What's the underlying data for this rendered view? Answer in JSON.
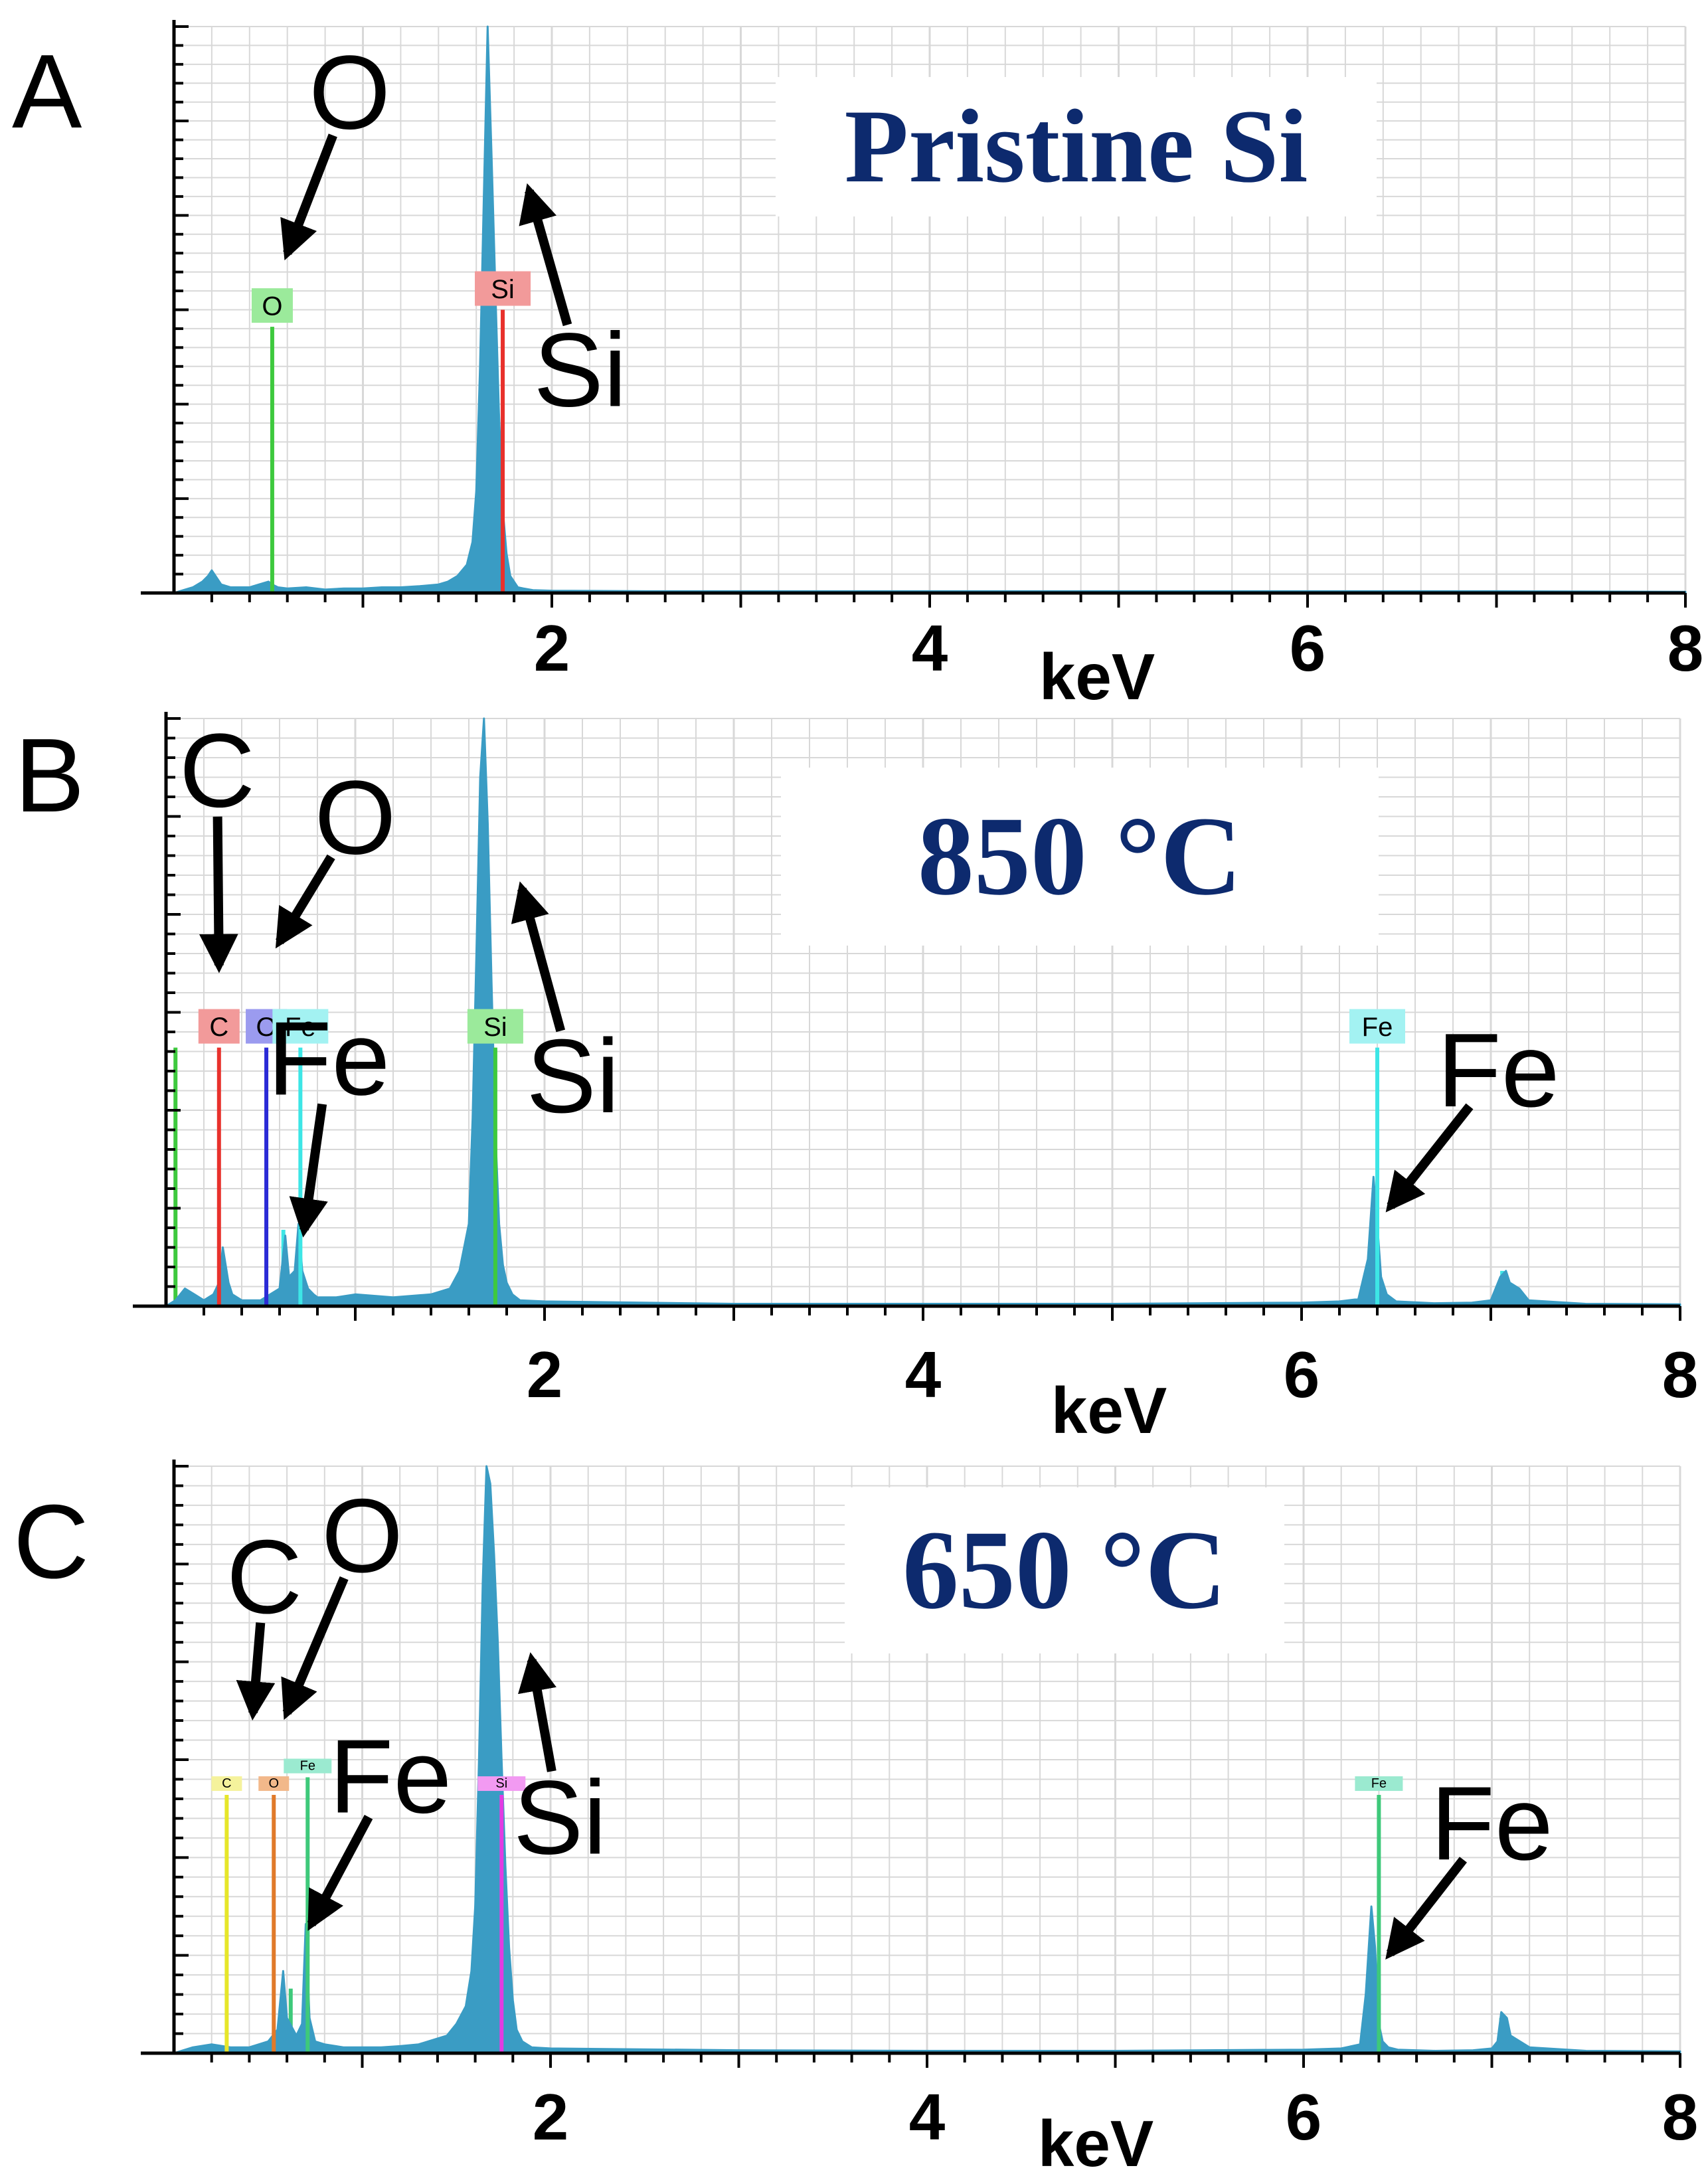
{
  "figure": {
    "panels": [
      "A",
      "B",
      "C"
    ]
  },
  "colors": {
    "spectrum": "#3a9cc4",
    "title_text": "#0d2a6e",
    "grid": "#d8d8d8",
    "axis": "#000000"
  },
  "chart_data": [
    {
      "type": "line",
      "panel": "A",
      "title": "Pristine Si",
      "xlabel": "keV",
      "ylabel": "",
      "xlim": [
        0,
        8
      ],
      "ylim": [
        0,
        100
      ],
      "xticks": [
        "2",
        "4",
        "6",
        "8"
      ],
      "series": [
        {
          "x": [
            0.0,
            0.05,
            0.1,
            0.15,
            0.18,
            0.2,
            0.25,
            0.3,
            0.35,
            0.4,
            0.45,
            0.5,
            0.52,
            0.55,
            0.6,
            0.7,
            0.8,
            0.9,
            1.0,
            1.1,
            1.2,
            1.3,
            1.4,
            1.45,
            1.5,
            1.55,
            1.58,
            1.6,
            1.62,
            1.64,
            1.66,
            1.68,
            1.7,
            1.72,
            1.74,
            1.76,
            1.78,
            1.8,
            1.82,
            1.85,
            1.9,
            2.0,
            2.5,
            3.0,
            4.0,
            5.0,
            6.0,
            7.0,
            8.0
          ],
          "y": [
            0,
            0.5,
            1,
            2,
            3,
            4,
            1.5,
            1,
            1,
            1,
            1.5,
            2,
            1.5,
            1,
            0.8,
            1,
            0.6,
            0.8,
            0.8,
            1,
            1,
            1.2,
            1.5,
            2,
            3,
            5,
            9,
            18,
            40,
            70,
            100,
            78,
            55,
            32,
            15,
            7,
            3,
            2,
            1,
            0.8,
            0.5,
            0.4,
            0.3,
            0.3,
            0.3,
            0.3,
            0.3,
            0.3,
            0.2
          ]
        }
      ],
      "element_markers": [
        {
          "label": "Si",
          "energy": 1.74,
          "height": 50,
          "color": "#e8312c",
          "tag_bg": "#f29a9a"
        },
        {
          "label": "O",
          "energy": 0.52,
          "height": 47,
          "color": "#3ec93e",
          "tag_bg": "#9bea9b"
        }
      ],
      "annotations": [
        {
          "text": "O",
          "x": 0.93,
          "y": 82,
          "arrow_to_x": 0.6,
          "arrow_to_y": 60
        },
        {
          "text": "Si",
          "x": 2.15,
          "y": 33,
          "arrow_to_x": 1.88,
          "arrow_to_y": 71
        }
      ]
    },
    {
      "type": "line",
      "panel": "B",
      "title": "850 °C",
      "xlabel": "keV",
      "ylabel": "",
      "xlim": [
        0,
        8
      ],
      "ylim": [
        0,
        100
      ],
      "xticks": [
        "2",
        "4",
        "6",
        "8"
      ],
      "series": [
        {
          "x": [
            0.0,
            0.05,
            0.1,
            0.15,
            0.2,
            0.25,
            0.28,
            0.3,
            0.33,
            0.35,
            0.4,
            0.45,
            0.5,
            0.55,
            0.6,
            0.63,
            0.65,
            0.68,
            0.7,
            0.72,
            0.75,
            0.78,
            0.8,
            0.85,
            0.9,
            1.0,
            1.2,
            1.4,
            1.5,
            1.55,
            1.6,
            1.62,
            1.64,
            1.66,
            1.68,
            1.7,
            1.72,
            1.74,
            1.76,
            1.78,
            1.8,
            1.83,
            1.87,
            2.0,
            3.0,
            4.0,
            5.0,
            6.0,
            6.2,
            6.3,
            6.35,
            6.38,
            6.4,
            6.42,
            6.45,
            6.5,
            6.7,
            6.9,
            7.0,
            7.05,
            7.08,
            7.1,
            7.15,
            7.2,
            7.5,
            8.0
          ],
          "y": [
            0,
            1,
            3,
            2,
            1,
            2,
            4,
            10,
            4,
            2,
            1,
            1,
            1,
            2,
            3,
            12,
            5,
            6,
            14,
            6,
            3,
            2,
            1.5,
            1.5,
            1.5,
            2,
            1.5,
            2,
            3,
            6,
            14,
            32,
            60,
            90,
            100,
            82,
            55,
            30,
            14,
            7,
            4,
            2,
            1,
            0.8,
            0.4,
            0.4,
            0.4,
            0.6,
            0.8,
            1.2,
            8,
            22,
            14,
            5,
            2,
            0.8,
            0.5,
            0.6,
            1,
            5,
            6,
            4,
            3,
            1,
            0.4,
            0.3
          ]
        }
      ],
      "element_markers": [
        {
          "label": "C",
          "energy": 0.28,
          "height": 44,
          "color": "#e8312c",
          "tag_bg": "#f29a9a"
        },
        {
          "label": "O",
          "energy": 0.53,
          "height": 44,
          "color": "#2b2bd6",
          "tag_bg": "#9b9bef"
        },
        {
          "label": "Fe",
          "energy": 0.71,
          "height": 44,
          "color": "#3de6e6",
          "tag_bg": "#a3f2f2"
        },
        {
          "label": "Si",
          "energy": 1.74,
          "height": 44,
          "color": "#3ec93e",
          "tag_bg": "#9bea9b"
        },
        {
          "label": "Fe",
          "energy": 6.4,
          "height": 44,
          "color": "#3de6e6",
          "tag_bg": "#a3f2f2"
        }
      ],
      "extra_lines": [
        {
          "energy": 0.05,
          "height": 44,
          "color": "#3ec93e"
        },
        {
          "energy": 0.62,
          "height": 13,
          "color": "#3de6e6"
        },
        {
          "energy": 7.06,
          "height": 6,
          "color": "#3de6e6"
        }
      ],
      "annotations": [
        {
          "text": "C",
          "x": 0.27,
          "y": 85,
          "arrow_to_x": 0.28,
          "arrow_to_y": 58
        },
        {
          "text": "O",
          "x": 1.0,
          "y": 77,
          "arrow_to_x": 0.6,
          "arrow_to_y": 62
        },
        {
          "text": "Fe",
          "x": 0.86,
          "y": 36,
          "arrow_to_x": 0.73,
          "arrow_to_y": 13
        },
        {
          "text": "Si",
          "x": 2.15,
          "y": 33,
          "arrow_to_x": 1.88,
          "arrow_to_y": 71
        },
        {
          "text": "Fe",
          "x": 7.04,
          "y": 34,
          "arrow_to_x": 6.47,
          "arrow_to_y": 17
        }
      ]
    },
    {
      "type": "line",
      "panel": "C",
      "title": "650 °C",
      "xlabel": "keV",
      "ylabel": "",
      "xlim": [
        0,
        8
      ],
      "ylim": [
        0,
        100
      ],
      "xticks": [
        "2",
        "4",
        "6",
        "8"
      ],
      "series": [
        {
          "x": [
            0.0,
            0.05,
            0.1,
            0.2,
            0.3,
            0.4,
            0.5,
            0.55,
            0.58,
            0.6,
            0.65,
            0.68,
            0.7,
            0.72,
            0.75,
            0.8,
            0.9,
            1.0,
            1.1,
            1.2,
            1.3,
            1.35,
            1.4,
            1.45,
            1.5,
            1.55,
            1.58,
            1.6,
            1.62,
            1.64,
            1.66,
            1.68,
            1.7,
            1.72,
            1.74,
            1.76,
            1.78,
            1.8,
            1.82,
            1.85,
            1.9,
            2.0,
            3.0,
            4.0,
            5.0,
            6.0,
            6.2,
            6.3,
            6.33,
            6.36,
            6.38,
            6.4,
            6.42,
            6.45,
            6.5,
            6.7,
            6.9,
            7.0,
            7.03,
            7.05,
            7.08,
            7.1,
            7.2,
            7.5,
            8.0
          ],
          "y": [
            0,
            0.5,
            1,
            1.5,
            1,
            1,
            2,
            4,
            14,
            6,
            3,
            5,
            22,
            6,
            2,
            1.5,
            1,
            1,
            1,
            1.2,
            1.5,
            2,
            2.5,
            3,
            5,
            8,
            14,
            25,
            50,
            80,
            100,
            97,
            85,
            70,
            50,
            32,
            18,
            9,
            4,
            2,
            1,
            0.8,
            0.5,
            0.4,
            0.4,
            0.6,
            0.8,
            1.5,
            10,
            25,
            18,
            5,
            2,
            1,
            0.6,
            0.4,
            0.5,
            0.8,
            2,
            7,
            6,
            3,
            1,
            0.4,
            0.3
          ]
        }
      ],
      "element_markers": [
        {
          "label": "C",
          "energy": 0.28,
          "height": 44,
          "color": "#e6e62a",
          "tag_bg": "#f5f29c"
        },
        {
          "label": "O",
          "energy": 0.53,
          "height": 44,
          "color": "#e07a2a",
          "tag_bg": "#f2b88a"
        },
        {
          "label": "Fe",
          "energy": 0.71,
          "height": 47,
          "color": "#3ec97a",
          "tag_bg": "#9bead0"
        },
        {
          "label": "Si",
          "energy": 1.74,
          "height": 44,
          "color": "#e23be2",
          "tag_bg": "#f29af2"
        },
        {
          "label": "Fe",
          "energy": 6.4,
          "height": 44,
          "color": "#3ec97a",
          "tag_bg": "#9bead0"
        }
      ],
      "extra_lines": [
        {
          "energy": 0.62,
          "height": 11,
          "color": "#3ec97a"
        },
        {
          "energy": 7.05,
          "height": 6,
          "color": "#3ec97a"
        }
      ],
      "annotations": [
        {
          "text": "C",
          "x": 0.48,
          "y": 75,
          "arrow_to_x": 0.42,
          "arrow_to_y": 58
        },
        {
          "text": "O",
          "x": 1.0,
          "y": 82,
          "arrow_to_x": 0.6,
          "arrow_to_y": 58
        },
        {
          "text": "Fe",
          "x": 1.15,
          "y": 41,
          "arrow_to_x": 0.73,
          "arrow_to_y": 22
        },
        {
          "text": "Si",
          "x": 2.05,
          "y": 34,
          "arrow_to_x": 1.9,
          "arrow_to_y": 67
        },
        {
          "text": "Fe",
          "x": 7.0,
          "y": 33,
          "arrow_to_x": 6.46,
          "arrow_to_y": 17
        }
      ]
    }
  ]
}
